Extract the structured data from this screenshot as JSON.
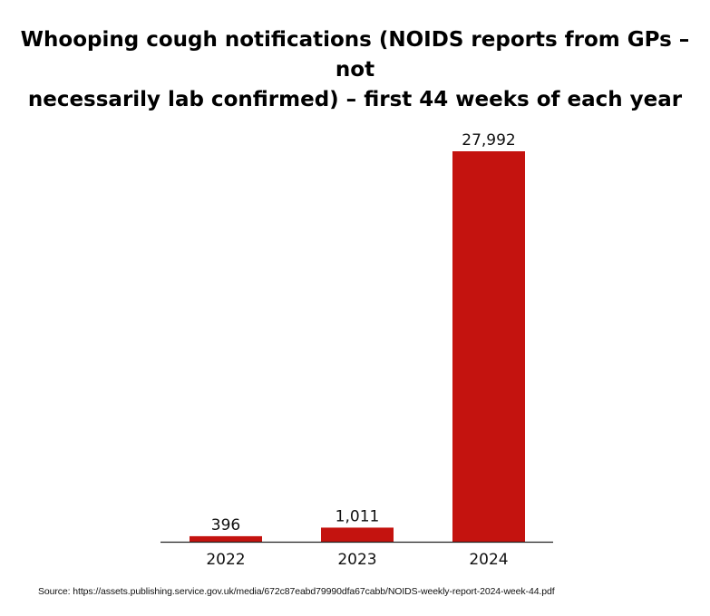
{
  "chart_data": {
    "type": "bar",
    "title_lines": [
      "Whooping cough notifications (NOIDS reports from GPs – not",
      "necessarily lab confirmed) – first 44 weeks of each year"
    ],
    "categories": [
      "2022",
      "2023",
      "2024"
    ],
    "values": [
      396,
      1011,
      27992
    ],
    "data_labels": [
      "396",
      "1,011",
      "27,992"
    ],
    "xlabel": "",
    "ylabel": "",
    "ylim": [
      0,
      27992
    ],
    "grid": false,
    "legend": "none",
    "bar_color": "#c4130f",
    "axis_color": "#222222"
  },
  "source": "Source: https://assets.publishing.service.gov.uk/media/672c87eabd79990dfa67cabb/NOIDS-weekly-report-2024-week-44.pdf"
}
